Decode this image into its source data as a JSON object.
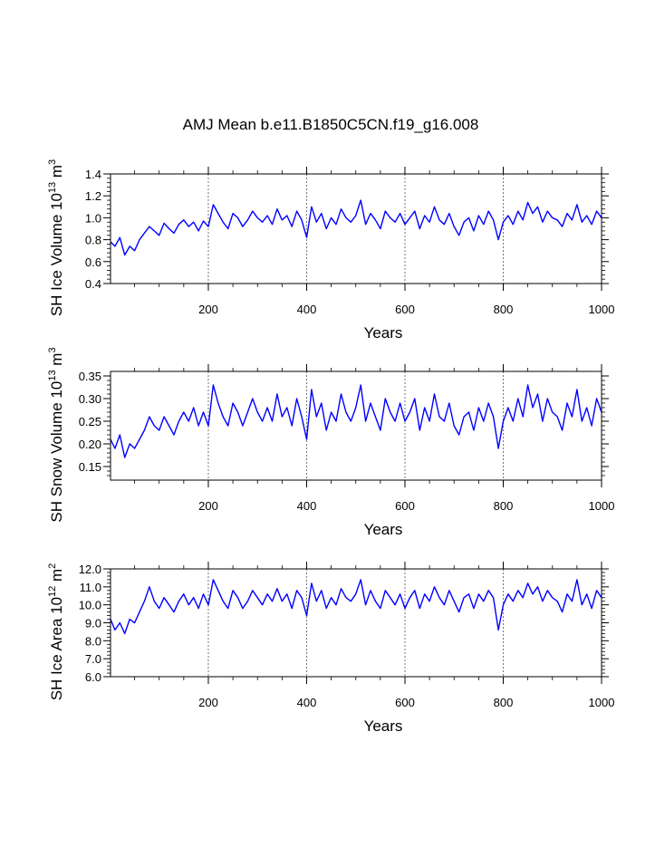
{
  "figure": {
    "title": "AMJ Mean b.e11.B1850C5CN.f19_g16.008",
    "line_color": "#0000ff",
    "grid_color": "#555555"
  },
  "chart_data": [
    {
      "type": "line",
      "name": "sh-ice-volume",
      "title": "",
      "xlabel": "Years",
      "ylabel": "SH Ice Volume 10",
      "ylabel_exp": "13",
      "ylabel_unit": "m",
      "ylabel_unit_exp": "3",
      "xlim": [
        1,
        1000
      ],
      "ylim": [
        0.4,
        1.4
      ],
      "xticks": [
        200,
        400,
        600,
        800,
        1000
      ],
      "xtick_labels": [
        "200",
        "400",
        "600",
        "800",
        "1000"
      ],
      "yticks": [
        0.4,
        0.6,
        0.8,
        1.0,
        1.2,
        1.4
      ],
      "ytick_labels": [
        "0.4",
        "0.6",
        "0.8",
        "1.0",
        "1.2",
        "1.4"
      ],
      "grid": "vertical dashed at x ticks",
      "series": [
        {
          "name": "SH Ice Volume",
          "x": [
            1,
            10,
            20,
            30,
            40,
            50,
            60,
            70,
            80,
            90,
            100,
            110,
            120,
            130,
            140,
            150,
            160,
            170,
            180,
            190,
            200,
            210,
            220,
            230,
            240,
            250,
            260,
            270,
            280,
            290,
            300,
            310,
            320,
            330,
            340,
            350,
            360,
            370,
            380,
            390,
            400,
            410,
            420,
            430,
            440,
            450,
            460,
            470,
            480,
            490,
            500,
            510,
            520,
            530,
            540,
            550,
            560,
            570,
            580,
            590,
            600,
            610,
            620,
            630,
            640,
            650,
            660,
            670,
            680,
            690,
            700,
            710,
            720,
            730,
            740,
            750,
            760,
            770,
            780,
            790,
            800,
            810,
            820,
            830,
            840,
            850,
            860,
            870,
            880,
            890,
            900,
            910,
            920,
            930,
            940,
            950,
            960,
            970,
            980,
            990,
            1000
          ],
          "values": [
            0.78,
            0.74,
            0.82,
            0.66,
            0.74,
            0.7,
            0.8,
            0.86,
            0.92,
            0.88,
            0.84,
            0.95,
            0.9,
            0.86,
            0.94,
            0.98,
            0.92,
            0.96,
            0.88,
            0.97,
            0.92,
            1.12,
            1.04,
            0.96,
            0.9,
            1.04,
            1.0,
            0.92,
            0.98,
            1.06,
            1.0,
            0.96,
            1.02,
            0.94,
            1.08,
            0.98,
            1.02,
            0.92,
            1.06,
            0.98,
            0.82,
            1.1,
            0.96,
            1.04,
            0.9,
            1.0,
            0.94,
            1.08,
            1.0,
            0.96,
            1.02,
            1.16,
            0.94,
            1.04,
            0.98,
            0.9,
            1.06,
            1.0,
            0.96,
            1.04,
            0.94,
            1.0,
            1.06,
            0.9,
            1.02,
            0.96,
            1.1,
            0.98,
            0.94,
            1.04,
            0.92,
            0.84,
            0.96,
            1.0,
            0.88,
            1.02,
            0.94,
            1.06,
            0.98,
            0.8,
            0.96,
            1.02,
            0.94,
            1.06,
            0.98,
            1.14,
            1.04,
            1.1,
            0.96,
            1.06,
            1.0,
            0.98,
            0.92,
            1.04,
            0.98,
            1.12,
            0.96,
            1.02,
            0.94,
            1.06,
            1.0
          ]
        }
      ]
    },
    {
      "type": "line",
      "name": "sh-snow-volume",
      "title": "",
      "xlabel": "Years",
      "ylabel": "SH Snow Volume 10",
      "ylabel_exp": "13",
      "ylabel_unit": "m",
      "ylabel_unit_exp": "3",
      "xlim": [
        1,
        1000
      ],
      "ylim": [
        0.12,
        0.36
      ],
      "xticks": [
        200,
        400,
        600,
        800,
        1000
      ],
      "xtick_labels": [
        "200",
        "400",
        "600",
        "800",
        "1000"
      ],
      "yticks": [
        0.15,
        0.2,
        0.25,
        0.3,
        0.35
      ],
      "ytick_labels": [
        "0.15",
        "0.20",
        "0.25",
        "0.30",
        "0.35"
      ],
      "grid": "vertical dashed at x ticks",
      "series": [
        {
          "name": "SH Snow Volume",
          "x": [
            1,
            10,
            20,
            30,
            40,
            50,
            60,
            70,
            80,
            90,
            100,
            110,
            120,
            130,
            140,
            150,
            160,
            170,
            180,
            190,
            200,
            210,
            220,
            230,
            240,
            250,
            260,
            270,
            280,
            290,
            300,
            310,
            320,
            330,
            340,
            350,
            360,
            370,
            380,
            390,
            400,
            410,
            420,
            430,
            440,
            450,
            460,
            470,
            480,
            490,
            500,
            510,
            520,
            530,
            540,
            550,
            560,
            570,
            580,
            590,
            600,
            610,
            620,
            630,
            640,
            650,
            660,
            670,
            680,
            690,
            700,
            710,
            720,
            730,
            740,
            750,
            760,
            770,
            780,
            790,
            800,
            810,
            820,
            830,
            840,
            850,
            860,
            870,
            880,
            890,
            900,
            910,
            920,
            930,
            940,
            950,
            960,
            970,
            980,
            990,
            1000
          ],
          "values": [
            0.21,
            0.19,
            0.22,
            0.17,
            0.2,
            0.19,
            0.21,
            0.23,
            0.26,
            0.24,
            0.23,
            0.26,
            0.24,
            0.22,
            0.25,
            0.27,
            0.25,
            0.28,
            0.24,
            0.27,
            0.24,
            0.33,
            0.29,
            0.26,
            0.24,
            0.29,
            0.27,
            0.24,
            0.27,
            0.3,
            0.27,
            0.25,
            0.28,
            0.25,
            0.31,
            0.26,
            0.28,
            0.24,
            0.3,
            0.26,
            0.21,
            0.32,
            0.26,
            0.29,
            0.23,
            0.27,
            0.25,
            0.31,
            0.27,
            0.25,
            0.28,
            0.33,
            0.25,
            0.29,
            0.26,
            0.23,
            0.3,
            0.27,
            0.25,
            0.29,
            0.25,
            0.27,
            0.3,
            0.23,
            0.28,
            0.25,
            0.31,
            0.26,
            0.25,
            0.29,
            0.24,
            0.22,
            0.26,
            0.27,
            0.23,
            0.28,
            0.25,
            0.29,
            0.26,
            0.19,
            0.25,
            0.28,
            0.25,
            0.3,
            0.26,
            0.33,
            0.28,
            0.31,
            0.25,
            0.3,
            0.27,
            0.26,
            0.23,
            0.29,
            0.26,
            0.32,
            0.25,
            0.28,
            0.24,
            0.3,
            0.27
          ]
        }
      ]
    },
    {
      "type": "line",
      "name": "sh-ice-area",
      "title": "",
      "xlabel": "Years",
      "ylabel": "SH Ice Area 10",
      "ylabel_exp": "12",
      "ylabel_unit": "m",
      "ylabel_unit_exp": "2",
      "xlim": [
        1,
        1000
      ],
      "ylim": [
        6.0,
        12.0
      ],
      "xticks": [
        200,
        400,
        600,
        800,
        1000
      ],
      "xtick_labels": [
        "200",
        "400",
        "600",
        "800",
        "1000"
      ],
      "yticks": [
        6.0,
        7.0,
        8.0,
        9.0,
        10.0,
        11.0,
        12.0
      ],
      "ytick_labels": [
        "6.0",
        "7.0",
        "8.0",
        "9.0",
        "10.0",
        "11.0",
        "12.0"
      ],
      "grid": "vertical dashed at x ticks",
      "series": [
        {
          "name": "SH Ice Area",
          "x": [
            1,
            10,
            20,
            30,
            40,
            50,
            60,
            70,
            80,
            90,
            100,
            110,
            120,
            130,
            140,
            150,
            160,
            170,
            180,
            190,
            200,
            210,
            220,
            230,
            240,
            250,
            260,
            270,
            280,
            290,
            300,
            310,
            320,
            330,
            340,
            350,
            360,
            370,
            380,
            390,
            400,
            410,
            420,
            430,
            440,
            450,
            460,
            470,
            480,
            490,
            500,
            510,
            520,
            530,
            540,
            550,
            560,
            570,
            580,
            590,
            600,
            610,
            620,
            630,
            640,
            650,
            660,
            670,
            680,
            690,
            700,
            710,
            720,
            730,
            740,
            750,
            760,
            770,
            780,
            790,
            800,
            810,
            820,
            830,
            840,
            850,
            860,
            870,
            880,
            890,
            900,
            910,
            920,
            930,
            940,
            950,
            960,
            970,
            980,
            990,
            1000
          ],
          "values": [
            9.2,
            8.6,
            9.0,
            8.4,
            9.2,
            9.0,
            9.6,
            10.2,
            11.0,
            10.2,
            9.8,
            10.4,
            10.0,
            9.6,
            10.2,
            10.6,
            10.0,
            10.4,
            9.8,
            10.6,
            10.0,
            11.4,
            10.8,
            10.2,
            9.8,
            10.8,
            10.4,
            9.8,
            10.2,
            10.8,
            10.4,
            10.0,
            10.6,
            10.2,
            10.9,
            10.2,
            10.6,
            9.8,
            10.8,
            10.4,
            9.4,
            11.2,
            10.2,
            10.8,
            9.8,
            10.4,
            10.0,
            10.9,
            10.4,
            10.2,
            10.6,
            11.4,
            10.0,
            10.8,
            10.2,
            9.8,
            10.8,
            10.4,
            10.0,
            10.6,
            9.8,
            10.4,
            10.8,
            9.8,
            10.6,
            10.2,
            11.0,
            10.4,
            10.0,
            10.8,
            10.2,
            9.6,
            10.4,
            10.6,
            9.8,
            10.6,
            10.2,
            10.8,
            10.4,
            8.6,
            10.0,
            10.6,
            10.2,
            10.8,
            10.4,
            11.2,
            10.6,
            11.0,
            10.2,
            10.8,
            10.4,
            10.2,
            9.6,
            10.6,
            10.2,
            11.4,
            10.0,
            10.6,
            9.8,
            10.8,
            10.4
          ]
        }
      ]
    }
  ]
}
